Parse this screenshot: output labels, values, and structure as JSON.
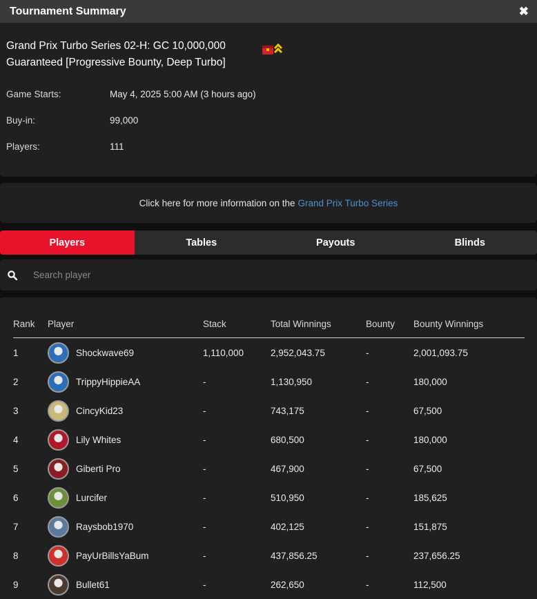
{
  "window": {
    "title": "Tournament Summary",
    "close_glyph": "✖"
  },
  "tournament": {
    "name": "Grand Prix Turbo Series 02-H: GC 10,000,000 Guaranteed [Progressive Bounty, Deep Turbo]",
    "badge_icon": "progressive-bounty-icon"
  },
  "info": [
    {
      "label": "Game Starts:",
      "value": "May 4, 2025 5:00 AM (3 hours ago)"
    },
    {
      "label": "Buy-in:",
      "value": "99,000"
    },
    {
      "label": "Players:",
      "value": "111"
    }
  ],
  "series_banner": {
    "text": "Click here for more information on the",
    "link": "Grand Prix Turbo Series"
  },
  "tabs": [
    {
      "label": "Players",
      "active": true
    },
    {
      "label": "Tables",
      "active": false
    },
    {
      "label": "Payouts",
      "active": false
    },
    {
      "label": "Blinds",
      "active": false
    }
  ],
  "search": {
    "placeholder": "Search player",
    "value": ""
  },
  "players_table": {
    "columns": [
      "Rank",
      "Player",
      "Stack",
      "Total Winnings",
      "Bounty",
      "Bounty Winnings"
    ],
    "rows": [
      {
        "rank": "1",
        "player": "Shockwave69",
        "stack": "1,110,000",
        "total": "2,952,043.75",
        "bounty": "-",
        "bounty_win": "2,001,093.75",
        "avatar_color": "#2a6fb8"
      },
      {
        "rank": "2",
        "player": "TrippyHippieAA",
        "stack": "-",
        "total": "1,130,950",
        "bounty": "-",
        "bounty_win": "180,000",
        "avatar_color": "#2a6fb8"
      },
      {
        "rank": "3",
        "player": "CincyKid23",
        "stack": "-",
        "total": "743,175",
        "bounty": "-",
        "bounty_win": "67,500",
        "avatar_color": "#c9b87a"
      },
      {
        "rank": "4",
        "player": "Lily Whites",
        "stack": "-",
        "total": "680,500",
        "bounty": "-",
        "bounty_win": "180,000",
        "avatar_color": "#b0182a"
      },
      {
        "rank": "5",
        "player": "Giberti Pro",
        "stack": "-",
        "total": "467,900",
        "bounty": "-",
        "bounty_win": "67,500",
        "avatar_color": "#8a1c24"
      },
      {
        "rank": "6",
        "player": "Lurcifer",
        "stack": "-",
        "total": "510,950",
        "bounty": "-",
        "bounty_win": "185,625",
        "avatar_color": "#6b8f3a"
      },
      {
        "rank": "7",
        "player": "Raysbob1970",
        "stack": "-",
        "total": "402,125",
        "bounty": "-",
        "bounty_win": "151,875",
        "avatar_color": "#5a7aa0"
      },
      {
        "rank": "8",
        "player": "PayUrBillsYaBum",
        "stack": "-",
        "total": "437,856.25",
        "bounty": "-",
        "bounty_win": "237,656.25",
        "avatar_color": "#d0302a"
      },
      {
        "rank": "9",
        "player": "Bullet61",
        "stack": "-",
        "total": "262,650",
        "bounty": "-",
        "bounty_win": "112,500",
        "avatar_color": "#4a3a32"
      }
    ]
  },
  "colors": {
    "accent": "#e8132a",
    "link": "#4f8fd0",
    "panel": "#202020",
    "titlebar": "#3a3a3a"
  }
}
